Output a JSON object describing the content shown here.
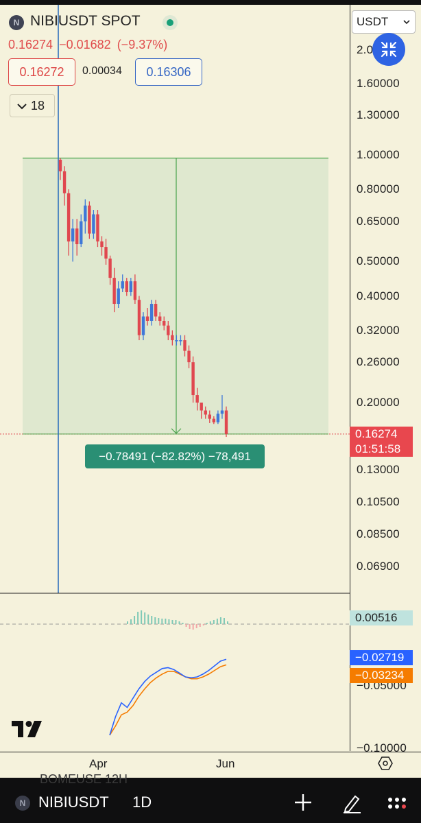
{
  "header": {
    "symbol_logo": "N",
    "symbol_title": "NIBIUSDT SPOT",
    "last_price": "0.16274",
    "change": "−0.01682",
    "change_pct": "(−9.37%)",
    "bid": "0.16272",
    "spread": "0.00034",
    "ask": "0.16306",
    "collapse_count": "18",
    "currency": "USDT"
  },
  "price_scale": {
    "ticks": [
      "2.0",
      "1.60000",
      "1.30000",
      "1.00000",
      "0.80000",
      "0.65000",
      "0.50000",
      "0.40000",
      "0.32000",
      "0.26000",
      "0.20000",
      "0.13000",
      "0.10500",
      "0.08500",
      "0.06900"
    ],
    "last_price_tag": "0.16274",
    "countdown": "01:51:58"
  },
  "measure": {
    "label": "−0.78491 (−82.82%) −78,491"
  },
  "indicator": {
    "hist_value": "0.00516",
    "macd_value": "−0.02719",
    "signal_value": "−0.03234",
    "scale_ticks": [
      "0.05000",
      "0.10000"
    ],
    "scale_ticks_prefix": "−"
  },
  "time_axis": {
    "labels": [
      "Apr",
      "Jun"
    ]
  },
  "bottom_bar": {
    "ghost_text": "BOMEUSE  12H",
    "symbol_logo": "N",
    "symbol": "NIBIUSDT",
    "interval": "1D"
  },
  "colors": {
    "background": "#f5f2dc",
    "up": "#3f78d8",
    "down": "#e0474f",
    "accent": "#2e63e3",
    "measure_fill": "#dfe8cf",
    "measure_line": "#49a24b",
    "macd": "#2962ff",
    "signal": "#f57c00"
  },
  "icons": {
    "fullscreen": "collapse-arrows-icon",
    "settings": "hexagon-settings-icon",
    "add": "plus-icon",
    "draw": "pencil-icon",
    "more": "ellipsis-icon"
  },
  "candles": [
    [
      0.97,
      0.98,
      0.85,
      0.9
    ],
    [
      0.9,
      0.93,
      0.72,
      0.78
    ],
    [
      0.78,
      0.8,
      0.52,
      0.57
    ],
    [
      0.57,
      0.66,
      0.5,
      0.62
    ],
    [
      0.62,
      0.66,
      0.52,
      0.56
    ],
    [
      0.56,
      0.68,
      0.55,
      0.65
    ],
    [
      0.65,
      0.75,
      0.6,
      0.72
    ],
    [
      0.72,
      0.74,
      0.58,
      0.6
    ],
    [
      0.6,
      0.7,
      0.58,
      0.68
    ],
    [
      0.68,
      0.7,
      0.55,
      0.57
    ],
    [
      0.57,
      0.59,
      0.52,
      0.55
    ],
    [
      0.55,
      0.58,
      0.49,
      0.51
    ],
    [
      0.51,
      0.52,
      0.43,
      0.45
    ],
    [
      0.45,
      0.48,
      0.36,
      0.38
    ],
    [
      0.38,
      0.44,
      0.37,
      0.42
    ],
    [
      0.42,
      0.46,
      0.41,
      0.44
    ],
    [
      0.44,
      0.45,
      0.4,
      0.41
    ],
    [
      0.41,
      0.45,
      0.4,
      0.44
    ],
    [
      0.44,
      0.46,
      0.38,
      0.39
    ],
    [
      0.39,
      0.4,
      0.3,
      0.31
    ],
    [
      0.31,
      0.36,
      0.3,
      0.35
    ],
    [
      0.35,
      0.37,
      0.33,
      0.34
    ],
    [
      0.34,
      0.39,
      0.33,
      0.38
    ],
    [
      0.38,
      0.39,
      0.34,
      0.35
    ],
    [
      0.35,
      0.36,
      0.33,
      0.34
    ],
    [
      0.34,
      0.35,
      0.32,
      0.33
    ],
    [
      0.33,
      0.34,
      0.3,
      0.31
    ],
    [
      0.31,
      0.32,
      0.29,
      0.3
    ],
    [
      0.3,
      0.31,
      0.29,
      0.3
    ],
    [
      0.3,
      0.31,
      0.29,
      0.3
    ],
    [
      0.3,
      0.31,
      0.27,
      0.28
    ],
    [
      0.28,
      0.29,
      0.25,
      0.26
    ],
    [
      0.26,
      0.27,
      0.2,
      0.21
    ],
    [
      0.21,
      0.22,
      0.19,
      0.2
    ],
    [
      0.2,
      0.2,
      0.18,
      0.19
    ],
    [
      0.19,
      0.195,
      0.18,
      0.185
    ],
    [
      0.185,
      0.19,
      0.175,
      0.18
    ],
    [
      0.18,
      0.183,
      0.174,
      0.176
    ],
    [
      0.176,
      0.19,
      0.174,
      0.186
    ],
    [
      0.186,
      0.21,
      0.18,
      0.19
    ],
    [
      0.19,
      0.195,
      0.16,
      0.163
    ]
  ],
  "hist": [
    0.2,
    0.35,
    0.6,
    0.9,
    1.0,
    0.85,
    0.7,
    0.6,
    0.5,
    0.45,
    0.4,
    0.4,
    0.35,
    0.3,
    0.3,
    0.2,
    0.1,
    -0.2,
    -0.35,
    -0.4,
    -0.3,
    -0.2,
    -0.1,
    0.1,
    0.2,
    0.3,
    0.4,
    0.5,
    0.45,
    0.2
  ],
  "macd_line": [
    -0.1,
    -0.08,
    -0.065,
    -0.07,
    -0.06,
    -0.05,
    -0.042,
    -0.036,
    -0.032,
    -0.028,
    -0.027,
    -0.029,
    -0.033,
    -0.037,
    -0.038,
    -0.037,
    -0.034,
    -0.03,
    -0.025,
    -0.02,
    -0.018
  ],
  "signal_line": [
    -0.1,
    -0.09,
    -0.078,
    -0.075,
    -0.068,
    -0.058,
    -0.05,
    -0.043,
    -0.038,
    -0.034,
    -0.031,
    -0.031,
    -0.034,
    -0.037,
    -0.039,
    -0.039,
    -0.037,
    -0.034,
    -0.03,
    -0.026,
    -0.024
  ]
}
